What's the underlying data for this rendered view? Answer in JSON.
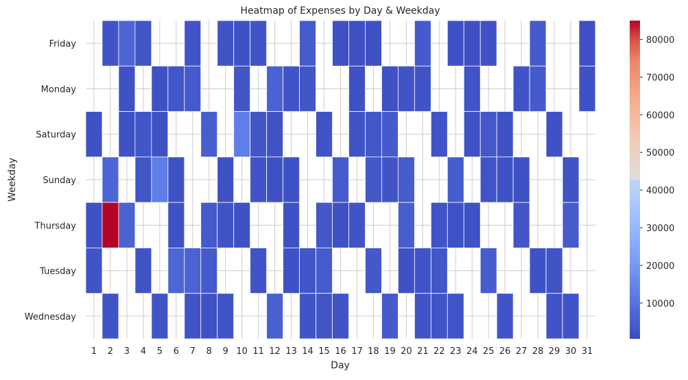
{
  "chart_data": {
    "type": "heatmap",
    "title": "Heatmap of Expenses by Day & Weekday",
    "xlabel": "Day",
    "ylabel": "Weekday",
    "x": [
      "1",
      "2",
      "3",
      "4",
      "5",
      "6",
      "7",
      "8",
      "9",
      "10",
      "11",
      "12",
      "13",
      "14",
      "15",
      "16",
      "17",
      "18",
      "19",
      "20",
      "21",
      "22",
      "23",
      "24",
      "25",
      "26",
      "27",
      "28",
      "29",
      "30",
      "31"
    ],
    "y": [
      "Friday",
      "Monday",
      "Saturday",
      "Sunday",
      "Thursday",
      "Tuesday",
      "Wednesday"
    ],
    "values": [
      [
        null,
        2500,
        7000,
        3000,
        null,
        null,
        2500,
        null,
        2500,
        2000,
        2500,
        null,
        null,
        4500,
        null,
        2000,
        1500,
        2000,
        null,
        null,
        4000,
        null,
        2000,
        1500,
        2000,
        null,
        null,
        4000,
        null,
        null,
        1500
      ],
      [
        null,
        null,
        2000,
        null,
        2000,
        3000,
        4000,
        null,
        null,
        3000,
        null,
        6000,
        2500,
        3000,
        null,
        null,
        2000,
        null,
        2000,
        2500,
        2500,
        null,
        null,
        2500,
        null,
        null,
        2500,
        4000,
        null,
        null,
        2000
      ],
      [
        2000,
        null,
        2000,
        3000,
        2000,
        null,
        null,
        5000,
        null,
        13000,
        3000,
        2500,
        null,
        null,
        2500,
        null,
        2500,
        3500,
        4000,
        null,
        null,
        2500,
        null,
        2000,
        3500,
        2000,
        null,
        null,
        2000,
        null,
        null
      ],
      [
        null,
        7000,
        null,
        3000,
        13000,
        2000,
        null,
        null,
        2000,
        null,
        2500,
        2000,
        2000,
        null,
        null,
        4500,
        null,
        3500,
        2500,
        4500,
        null,
        null,
        4500,
        null,
        2500,
        2000,
        2000,
        null,
        null,
        2500,
        null
      ],
      [
        2000,
        85000,
        6000,
        null,
        null,
        2000,
        null,
        4000,
        2500,
        2000,
        null,
        null,
        2000,
        null,
        3500,
        2000,
        2500,
        null,
        null,
        5000,
        null,
        2500,
        2000,
        2000,
        null,
        null,
        3000,
        null,
        null,
        4500,
        null
      ],
      [
        2500,
        null,
        null,
        2500,
        null,
        7000,
        6000,
        4000,
        null,
        null,
        2500,
        null,
        2000,
        3000,
        4500,
        null,
        null,
        3500,
        null,
        2000,
        2500,
        3000,
        null,
        null,
        4500,
        null,
        null,
        2000,
        2500,
        null,
        null
      ],
      [
        null,
        2500,
        null,
        null,
        2500,
        null,
        2500,
        2000,
        2500,
        null,
        null,
        5500,
        null,
        2500,
        3000,
        2500,
        null,
        null,
        4000,
        null,
        2500,
        2500,
        2500,
        null,
        null,
        2500,
        null,
        null,
        2500,
        2500,
        null
      ]
    ],
    "colorbar": {
      "colormap": "coolwarm",
      "min": 500,
      "max": 85000,
      "ticks": [
        10000,
        20000,
        30000,
        40000,
        50000,
        60000,
        70000,
        80000
      ],
      "tick_labels": [
        "10000",
        "20000",
        "30000",
        "40000",
        "50000",
        "60000",
        "70000",
        "80000"
      ]
    },
    "grid": true
  }
}
